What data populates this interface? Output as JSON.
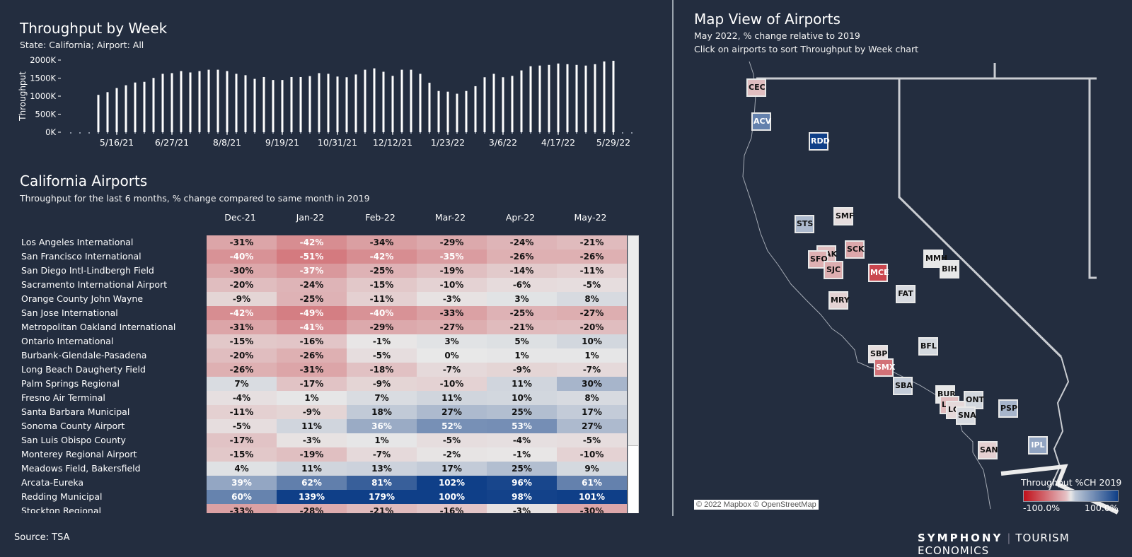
{
  "throughput_chart": {
    "title": "Throughput by Week",
    "subtitle": "State: California; Airport: All"
  },
  "chart_data": [
    {
      "type": "bar",
      "title": "Throughput by Week",
      "subtitle": "State: California; Airport: All",
      "xlabel": "",
      "ylabel": "Throughput",
      "ylim": [
        0,
        2000000
      ],
      "yticks": [
        "0K",
        "500K",
        "1000K",
        "1500K",
        "2000K"
      ],
      "ytick_values": [
        0,
        500000,
        1000000,
        1500000,
        2000000
      ],
      "xticks": [
        "5/16/21",
        "6/27/21",
        "8/8/21",
        "9/19/21",
        "10/31/21",
        "12/12/21",
        "1/23/22",
        "3/6/22",
        "4/17/22",
        "5/29/22"
      ],
      "xtick_index": [
        5,
        11,
        17,
        23,
        29,
        35,
        41,
        47,
        53,
        59
      ],
      "leading_empty_weeks": 3,
      "trailing_empty_weeks": 2,
      "values": [
        1035000,
        1111000,
        1225000,
        1302000,
        1378000,
        1397000,
        1505000,
        1619000,
        1638000,
        1695000,
        1657000,
        1695000,
        1733000,
        1733000,
        1695000,
        1619000,
        1581000,
        1479000,
        1530000,
        1448000,
        1448000,
        1530000,
        1530000,
        1556000,
        1638000,
        1619000,
        1543000,
        1524000,
        1600000,
        1733000,
        1771000,
        1676000,
        1562000,
        1733000,
        1733000,
        1619000,
        1371000,
        1143000,
        1124000,
        1067000,
        1143000,
        1276000,
        1524000,
        1619000,
        1524000,
        1562000,
        1714000,
        1829000,
        1848000,
        1867000,
        1905000,
        1886000,
        1867000,
        1848000,
        1886000,
        1962000,
        1981000
      ],
      "grid": false
    },
    {
      "type": "heatmap",
      "title": "California Airports",
      "subtitle": "Throughput for the last 6 months, % change compared to same month in 2019",
      "columns": [
        "Dec-21",
        "Jan-22",
        "Feb-22",
        "Mar-22",
        "Apr-22",
        "May-22"
      ],
      "rows": [
        {
          "name": "Los Angeles International",
          "values": [
            -31,
            -42,
            -34,
            -29,
            -24,
            -21
          ]
        },
        {
          "name": "San Francisco International",
          "values": [
            -40,
            -51,
            -42,
            -35,
            -26,
            -26
          ]
        },
        {
          "name": "San Diego Intl-Lindbergh Field",
          "values": [
            -30,
            -37,
            -25,
            -19,
            -14,
            -11
          ]
        },
        {
          "name": "Sacramento International Airport",
          "values": [
            -20,
            -24,
            -15,
            -10,
            -6,
            -5
          ]
        },
        {
          "name": "Orange County John Wayne",
          "values": [
            -9,
            -25,
            -11,
            -3,
            3,
            8
          ]
        },
        {
          "name": "San Jose International",
          "values": [
            -42,
            -49,
            -40,
            -33,
            -25,
            -27
          ]
        },
        {
          "name": "Metropolitan Oakland International",
          "values": [
            -31,
            -41,
            -29,
            -27,
            -21,
            -20
          ]
        },
        {
          "name": "Ontario International",
          "values": [
            -15,
            -16,
            -1,
            3,
            5,
            10
          ]
        },
        {
          "name": "Burbank-Glendale-Pasadena",
          "values": [
            -20,
            -26,
            -5,
            0,
            1,
            1
          ]
        },
        {
          "name": "Long Beach Daugherty Field",
          "values": [
            -26,
            -31,
            -18,
            -7,
            -9,
            -7
          ]
        },
        {
          "name": "Palm Springs Regional",
          "values": [
            7,
            -17,
            -9,
            -10,
            11,
            30
          ]
        },
        {
          "name": "Fresno Air Terminal",
          "values": [
            -4,
            1,
            7,
            11,
            10,
            8
          ]
        },
        {
          "name": "Santa Barbara Municipal",
          "values": [
            -11,
            -9,
            18,
            27,
            25,
            17
          ]
        },
        {
          "name": "Sonoma County Airport",
          "values": [
            -5,
            11,
            36,
            52,
            53,
            27
          ]
        },
        {
          "name": "San Luis Obispo County",
          "values": [
            -17,
            -3,
            1,
            -5,
            -4,
            -5
          ]
        },
        {
          "name": "Monterey Regional Airport",
          "values": [
            -15,
            -19,
            -7,
            -2,
            -1,
            -10
          ]
        },
        {
          "name": "Meadows Field, Bakersfield",
          "values": [
            4,
            11,
            13,
            17,
            25,
            9
          ]
        },
        {
          "name": "Arcata-Eureka",
          "values": [
            39,
            62,
            81,
            102,
            96,
            61
          ]
        },
        {
          "name": "Redding Municipal",
          "values": [
            60,
            139,
            179,
            100,
            98,
            101
          ]
        },
        {
          "name": "Stockton Regional",
          "values": [
            -33,
            -28,
            -21,
            -16,
            -3,
            -30
          ]
        }
      ],
      "color_scale": {
        "min": -100,
        "max": 100,
        "neg_color": "#c0101a",
        "mid_color": "#e8e8e8",
        "pos_color": "#0f3f88"
      }
    }
  ],
  "airports_table": {
    "title": "California Airports",
    "subtitle": "Throughput for the last 6 months, % change compared to same month in 2019"
  },
  "map": {
    "title": "Map View of Airports",
    "subtitle1": "May 2022, % change relative to 2019",
    "subtitle2": "Click on airports to sort Throughput by Week chart",
    "airports": [
      {
        "code": "CEC",
        "value": -20
      },
      {
        "code": "ACV",
        "value": 61
      },
      {
        "code": "RDD",
        "value": 101
      },
      {
        "code": "SMF",
        "value": -5
      },
      {
        "code": "STS",
        "value": 27
      },
      {
        "code": "SCK",
        "value": -30
      },
      {
        "code": "OAK",
        "value": -20
      },
      {
        "code": "SFO",
        "value": -26
      },
      {
        "code": "SJC",
        "value": -27
      },
      {
        "code": "MCE",
        "value": -75
      },
      {
        "code": "MMH",
        "value": 0
      },
      {
        "code": "BIH",
        "value": 0
      },
      {
        "code": "FAT",
        "value": 8
      },
      {
        "code": "MRY",
        "value": -10
      },
      {
        "code": "BFL",
        "value": 9
      },
      {
        "code": "SBP",
        "value": -5
      },
      {
        "code": "SMX",
        "value": -55
      },
      {
        "code": "SBA",
        "value": 17
      },
      {
        "code": "BUR",
        "value": 1
      },
      {
        "code": "ONT",
        "value": 10
      },
      {
        "code": "LAX",
        "value": -21
      },
      {
        "code": "LGB",
        "value": -7
      },
      {
        "code": "SNA",
        "value": 8
      },
      {
        "code": "PSP",
        "value": 30
      },
      {
        "code": "SAN",
        "value": -11
      },
      {
        "code": "IPL",
        "value": 40
      }
    ],
    "legend": {
      "title": "Throughput %CH 2019",
      "min_label": "-100.0%",
      "max_label": "100.0%"
    },
    "attribution": "© 2022 Mapbox © OpenStreetMap"
  },
  "footer": {
    "source": "Source: TSA",
    "brand_primary": "SYMPHONY",
    "brand_secondary": "TOURISM ECONOMICS"
  }
}
